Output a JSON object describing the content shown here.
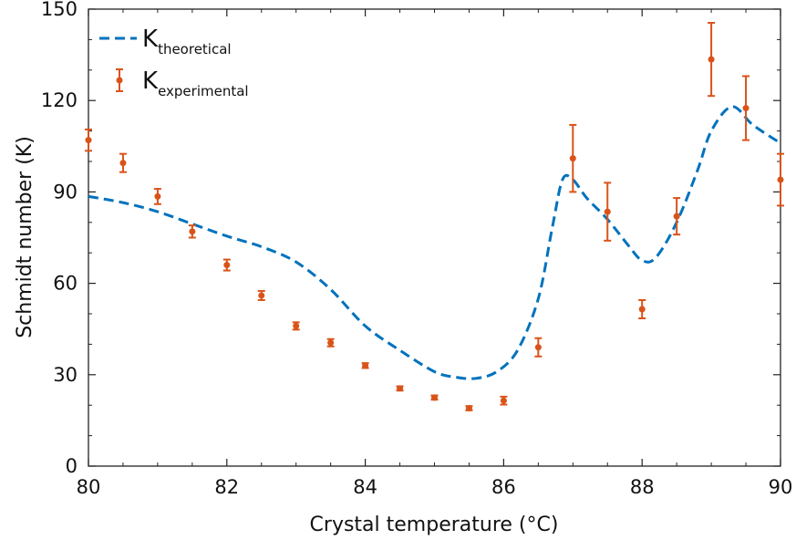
{
  "chart_data": {
    "type": "line",
    "xlabel": "Crystal temperature (°C)",
    "ylabel": "Schmidt number (K)",
    "xlim": [
      80,
      90
    ],
    "ylim": [
      0,
      150
    ],
    "xticks": [
      80,
      82,
      84,
      86,
      88,
      90
    ],
    "yticks": [
      0,
      30,
      60,
      90,
      120,
      150
    ],
    "grid": false,
    "legend_position": "top-left",
    "legend": [
      {
        "main": "K",
        "sub": "theoretical"
      },
      {
        "main": "K",
        "sub": "experimental"
      }
    ],
    "series": [
      {
        "name": "Ktheoretical",
        "style": "dashed-line",
        "color": "#0072BD",
        "x": [
          80,
          80.5,
          81,
          81.5,
          82,
          82.5,
          83,
          83.5,
          84,
          84.5,
          85,
          85.3,
          85.6,
          85.9,
          86.2,
          86.5,
          86.7,
          86.85,
          87,
          87.2,
          87.5,
          87.8,
          88,
          88.2,
          88.5,
          88.8,
          89,
          89.3,
          89.6,
          90
        ],
        "y": [
          88.5,
          86.5,
          83.5,
          79.5,
          75.5,
          72,
          67,
          58,
          46,
          38,
          31,
          29.2,
          28.8,
          31,
          38,
          55,
          78,
          94,
          94,
          88,
          81,
          72.5,
          67.5,
          68.5,
          80,
          97,
          110,
          118,
          112,
          106
        ]
      },
      {
        "name": "Kexperimental",
        "style": "errorbar",
        "color": "#D95319",
        "x": [
          80,
          80.5,
          81,
          81.5,
          82,
          82.5,
          83,
          83.5,
          84,
          84.5,
          85,
          85.5,
          86,
          86.5,
          87,
          87.5,
          88,
          88.5,
          89,
          89.5,
          90
        ],
        "y": [
          107,
          99.5,
          88.5,
          77,
          66,
          56,
          46,
          40.5,
          33,
          25.5,
          22.5,
          19,
          21.5,
          39,
          101,
          83.5,
          51.5,
          82,
          133.5,
          117.5,
          94
        ],
        "err": [
          3.5,
          3,
          2.5,
          2,
          1.8,
          1.5,
          1.2,
          1.2,
          0.8,
          0.7,
          0.7,
          0.7,
          1.3,
          3,
          11,
          9.5,
          3,
          6,
          12,
          10.5,
          8.5
        ]
      }
    ]
  }
}
